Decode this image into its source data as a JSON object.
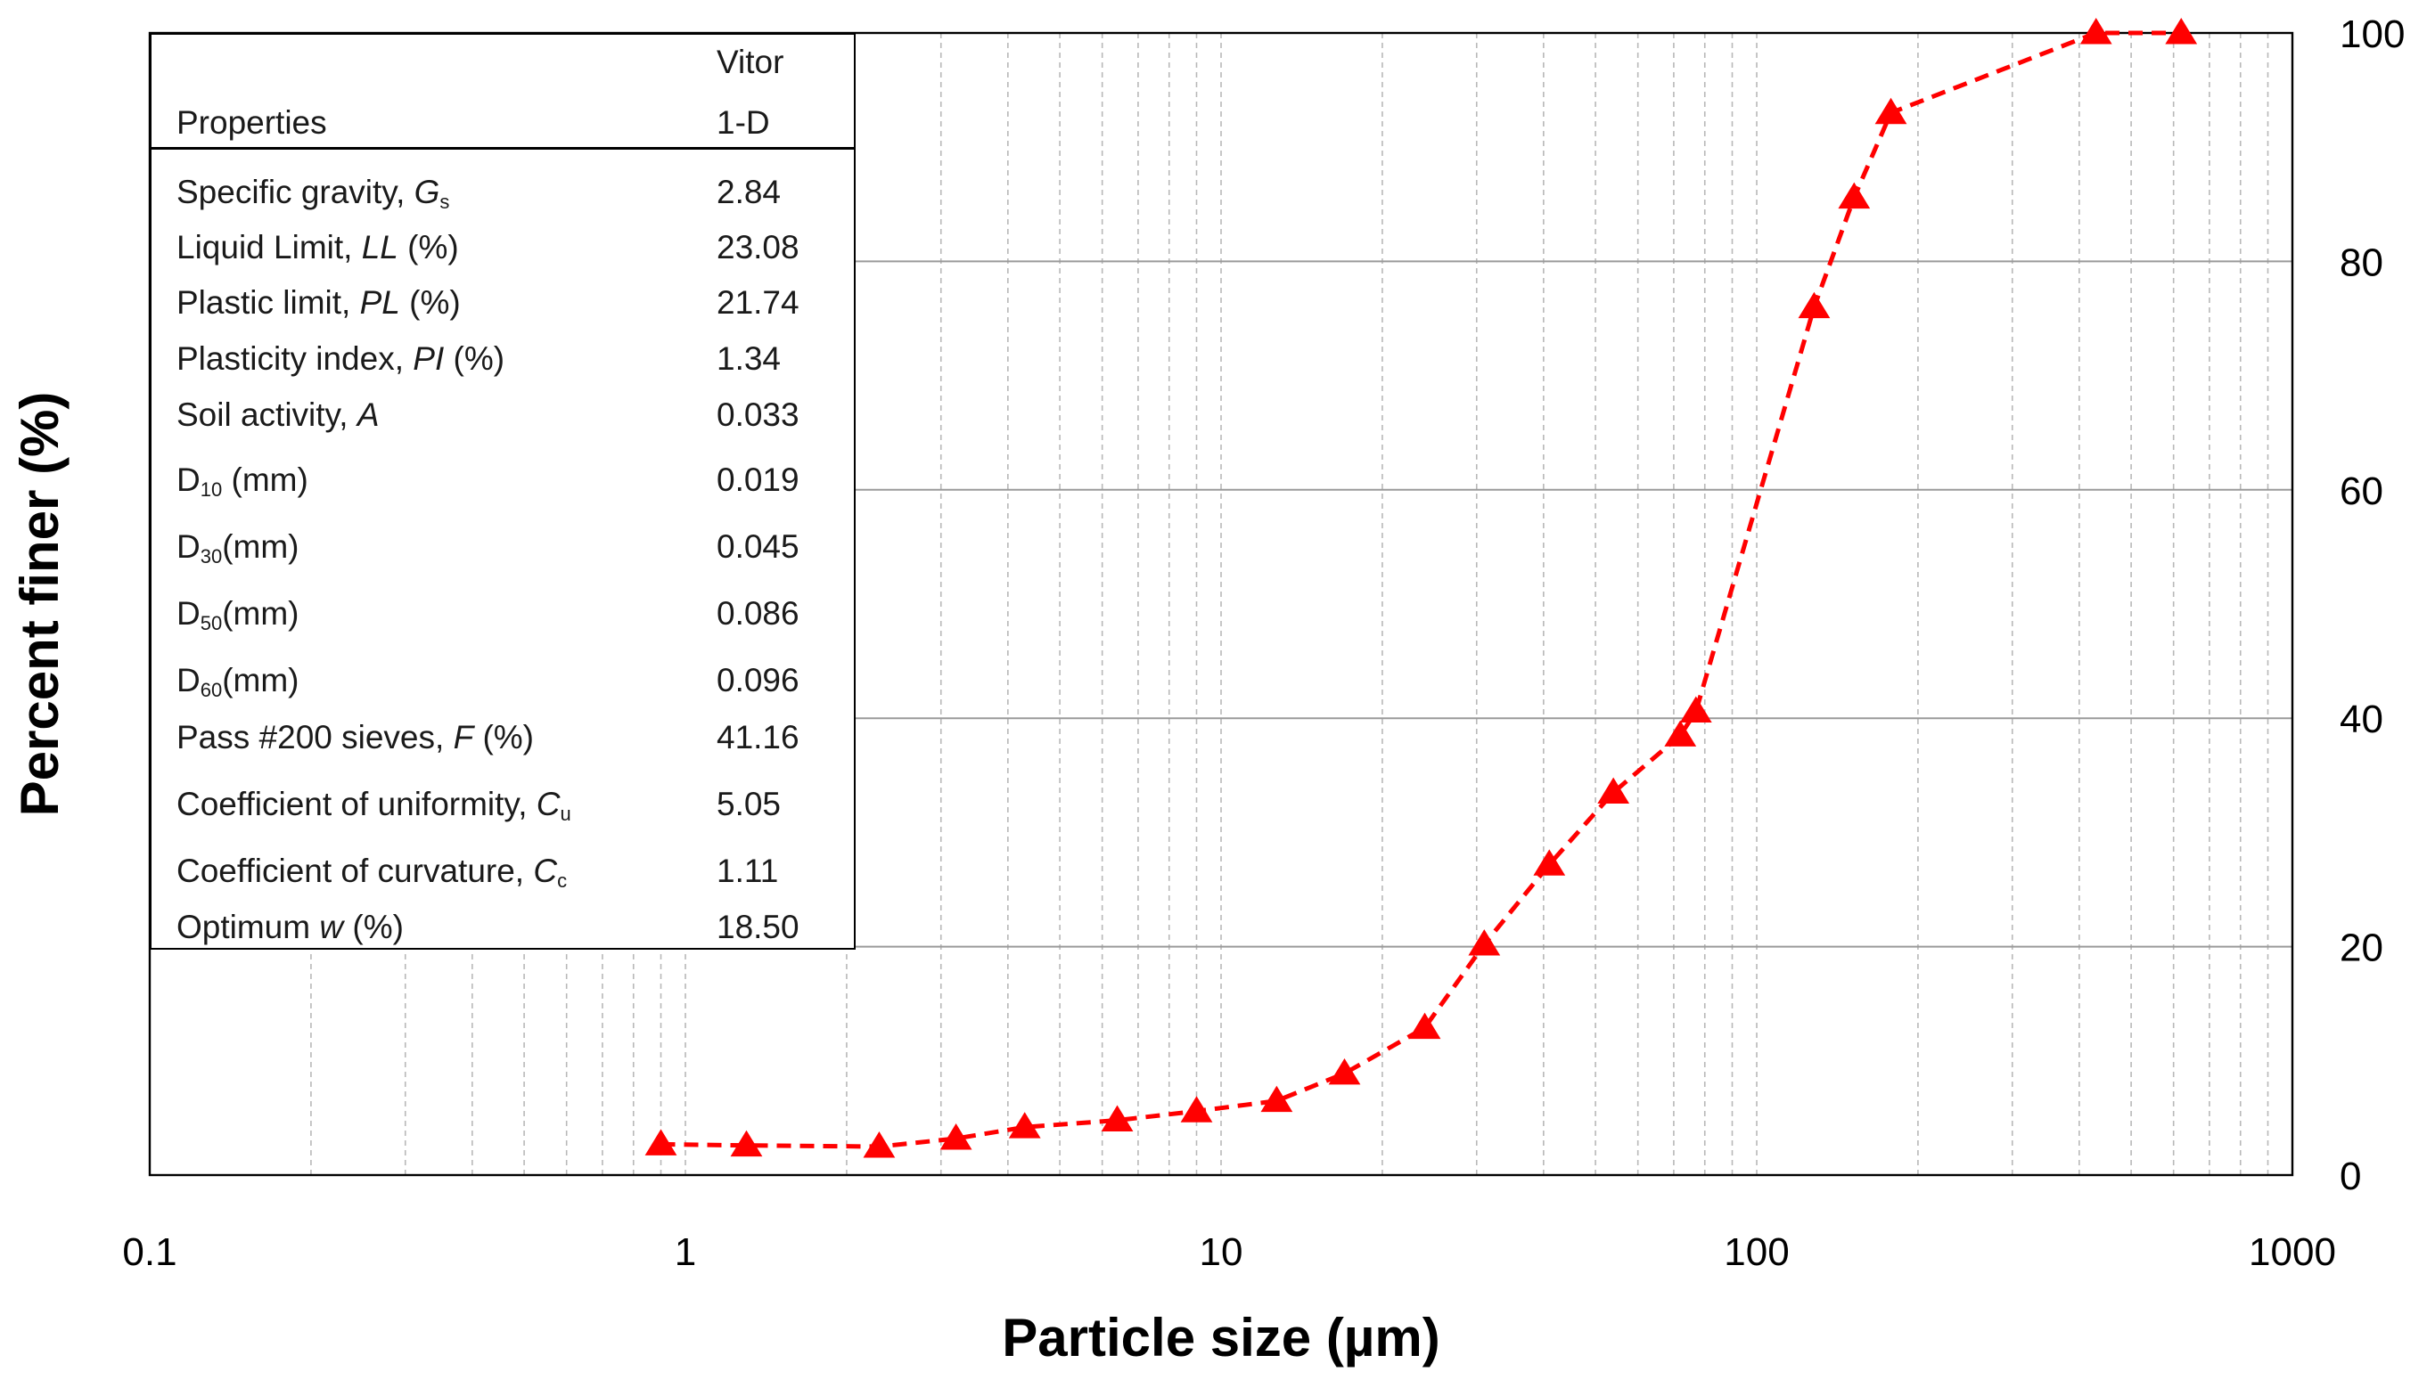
{
  "chart_data": {
    "type": "line",
    "title": "",
    "xlabel": "Particle size (µm)",
    "ylabel": "Percent finer (%)",
    "x_scale": "log",
    "xlim": [
      0.1,
      1000
    ],
    "ylim": [
      0,
      100
    ],
    "x_ticks": [
      "0.1",
      "1",
      "10",
      "100",
      "1000"
    ],
    "y_ticks": [
      "0",
      "20",
      "40",
      "60",
      "80",
      "100"
    ],
    "y_axis_side": "right",
    "grid": true,
    "series": [
      {
        "name": "Vitor 1-D",
        "color": "#ff0000",
        "marker": "triangle",
        "line_style": "dashed",
        "x": [
          0.9,
          1.3,
          2.3,
          3.2,
          4.3,
          6.4,
          9.0,
          12.7,
          17.0,
          24.0,
          31.0,
          41.0,
          54.0,
          72.0,
          77.0,
          128.0,
          152.0,
          178.0,
          430.0,
          620.0
        ],
        "y": [
          2.7,
          2.6,
          2.5,
          3.2,
          4.2,
          4.8,
          5.6,
          6.5,
          8.9,
          12.9,
          20.2,
          27.2,
          33.5,
          38.5,
          40.6,
          76.0,
          85.6,
          93.0,
          100.0,
          100.0
        ]
      }
    ]
  },
  "table": {
    "header": {
      "col1": "Properties",
      "col2_line1": "Vitor",
      "col2_line2": "1-D"
    },
    "rows": [
      {
        "label_pre": "Specific gravity, ",
        "label_it": "G",
        "label_sub": "s",
        "label_post": "",
        "value": "2.84"
      },
      {
        "label_pre": "Liquid Limit, ",
        "label_it": "LL",
        "label_sub": "",
        "label_post": " (%)",
        "value": "23.08"
      },
      {
        "label_pre": "Plastic limit, ",
        "label_it": "PL",
        "label_sub": "",
        "label_post": " (%)",
        "value": "21.74"
      },
      {
        "label_pre": "Plasticity index, ",
        "label_it": "PI",
        "label_sub": "",
        "label_post": " (%)",
        "value": "1.34"
      },
      {
        "label_pre": "Soil activity, ",
        "label_it": "A",
        "label_sub": "",
        "label_post": "",
        "value": "0.033"
      },
      {
        "label_pre": "D",
        "label_it": "",
        "label_sub": "10",
        "label_post": " (mm)",
        "value": "0.019"
      },
      {
        "label_pre": "D",
        "label_it": "",
        "label_sub": "30",
        "label_post": "(mm)",
        "value": "0.045"
      },
      {
        "label_pre": "D",
        "label_it": "",
        "label_sub": "50",
        "label_post": "(mm)",
        "value": "0.086"
      },
      {
        "label_pre": "D",
        "label_it": "",
        "label_sub": "60",
        "label_post": "(mm)",
        "value": "0.096"
      },
      {
        "label_pre": "Pass #200 sieves, ",
        "label_it": "F",
        "label_sub": "",
        "label_post": " (%)",
        "value": "41.16"
      },
      {
        "label_pre": "Coefficient of uniformity, ",
        "label_it": "C",
        "label_sub": "u",
        "label_post": "",
        "value": "5.05"
      },
      {
        "label_pre": "Coefficient of curvature, ",
        "label_it": "C",
        "label_sub": "c",
        "label_post": "",
        "value": "1.11"
      },
      {
        "label_pre": "Optimum ",
        "label_it": "w",
        "label_sub": "",
        "label_post": " (%)",
        "value": "18.50"
      }
    ]
  }
}
